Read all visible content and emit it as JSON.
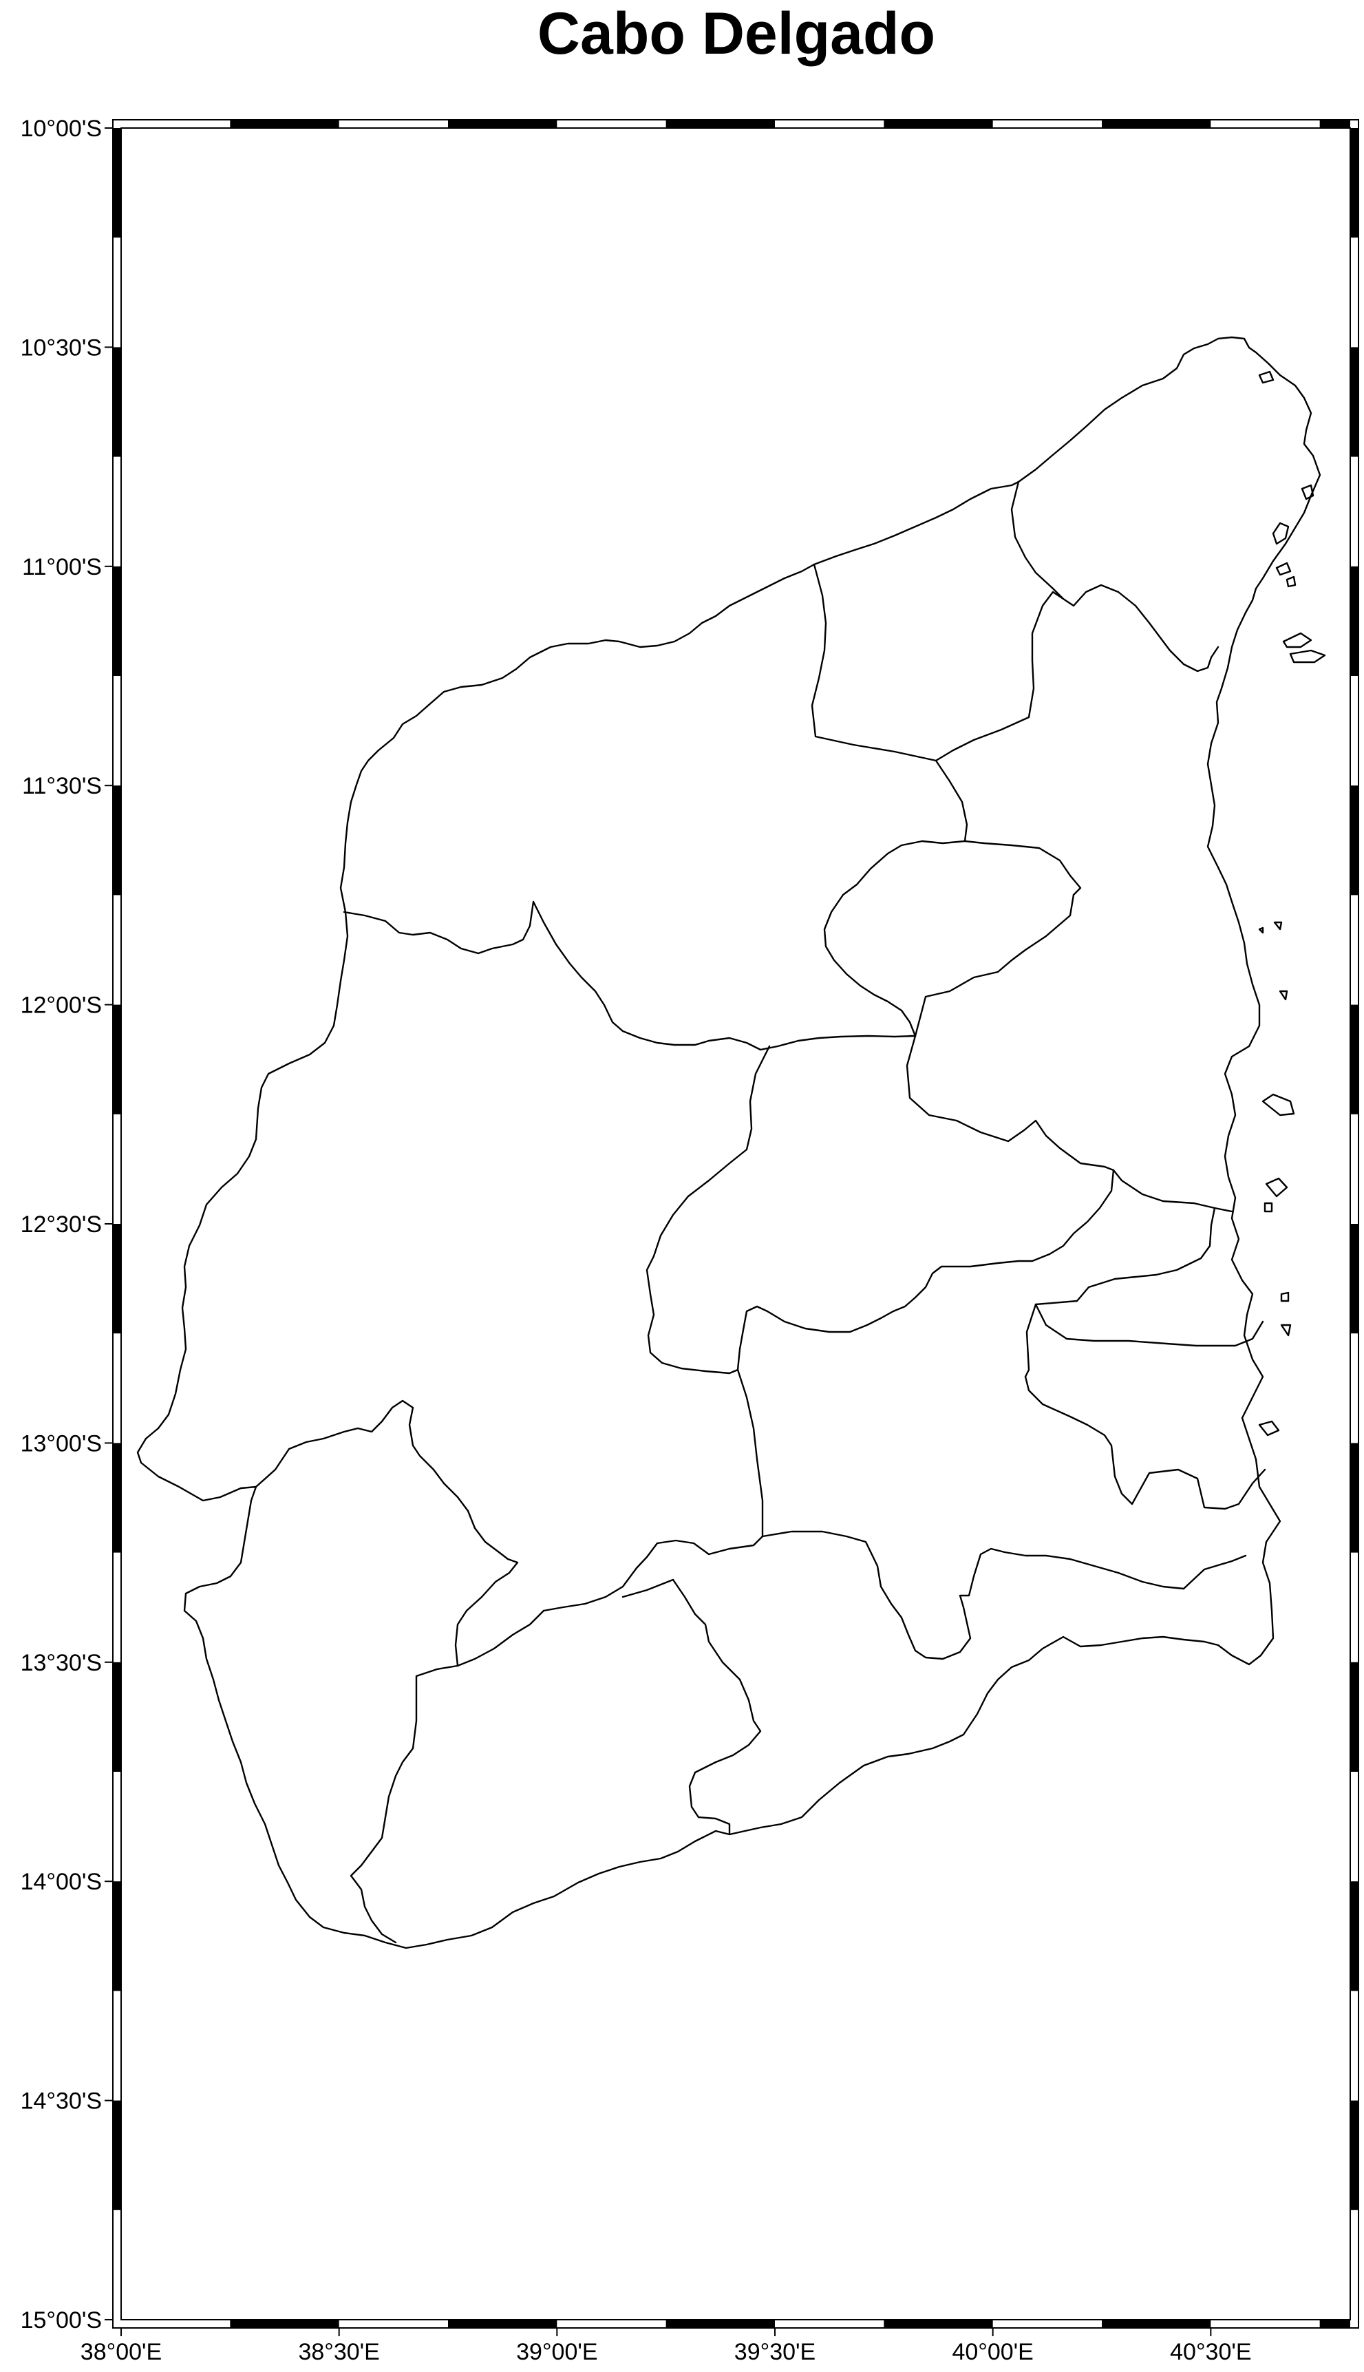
{
  "map": {
    "title": "Cabo Delgado",
    "colors": {
      "frame_dark": "#000000",
      "frame_light": "#ffffff",
      "outline": "#000000",
      "background": "#ffffff"
    },
    "frame_style": "fancy alternating black/white border",
    "lat_labels": [
      "10°00'S",
      "10°30'S",
      "11°00'S",
      "11°30'S",
      "12°00'S",
      "12°30'S",
      "13°00'S",
      "13°30'S",
      "14°00'S",
      "14°30'S",
      "15°00'S"
    ],
    "lon_labels": [
      "38°00'E",
      "38°30'E",
      "39°00'E",
      "39°30'E",
      "40°00'E",
      "40°30'E"
    ]
  }
}
